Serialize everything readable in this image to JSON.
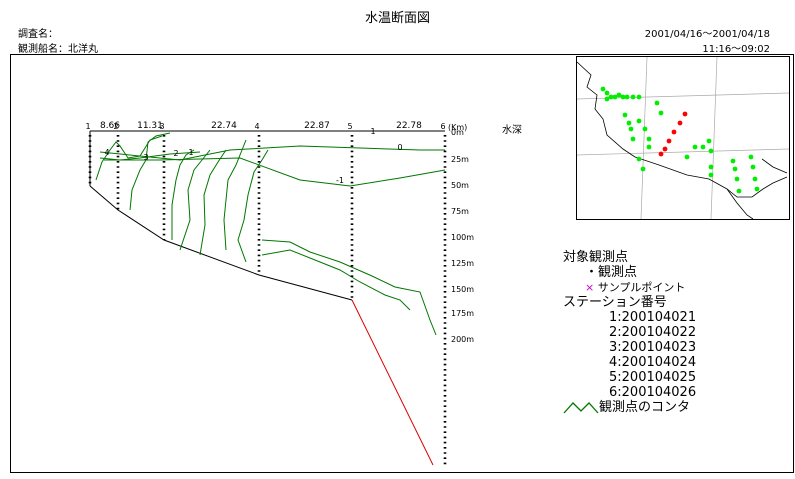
{
  "header": {
    "title": "水温断面図",
    "survey_label": "調査名：",
    "ship_label": "観測船名：北洋丸",
    "date_range": "2001/04/16～2001/04/18",
    "time_range": "11:16～09:02"
  },
  "chart_data": {
    "type": "contour-section",
    "axis_units": {
      "distance": "(Km)",
      "depth": "水深"
    },
    "stations": [
      1,
      2,
      3,
      4,
      5,
      6
    ],
    "distance_labels": [
      "8.66",
      "11.31",
      "22.74",
      "22.87",
      "22.78"
    ],
    "depth_labels": [
      "0m",
      "25m",
      "50m",
      "75m",
      "100m",
      "125m",
      "150m",
      "175m",
      "200m"
    ],
    "contour_labels": [
      "1",
      "0",
      "-1",
      "2",
      "3",
      "4",
      "1"
    ],
    "colors": {
      "contour": "#007700",
      "seafloor": "#000000",
      "extension": "#dd0000"
    }
  },
  "legend": {
    "title": "対象観測点",
    "obs_point": "観測点",
    "sample_point": "サンプルポイント",
    "station_header": "ステーション番号",
    "stations": [
      "1:200104021",
      "2:200104022",
      "3:200104023",
      "4:200104024",
      "5:200104025",
      "6:200104026"
    ],
    "contour": "観測点のコンタ",
    "sample_marker": "×",
    "obs_marker": "・"
  },
  "map": {
    "colors": {
      "selected": "#ff0000",
      "other": "#00ee00",
      "coast": "#000000"
    }
  }
}
